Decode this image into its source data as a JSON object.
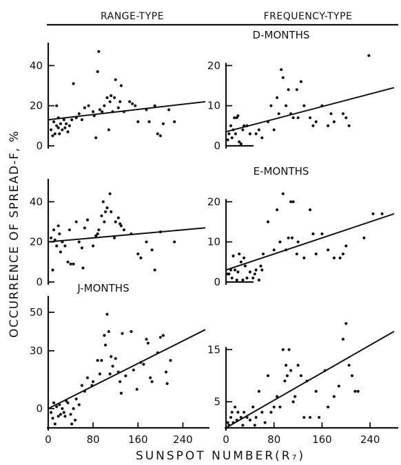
{
  "figure": {
    "col_titles": [
      "RANGE-TYPE",
      "FREQUENCY-TYPE"
    ],
    "ylabel": "OCCURRENCE OF SPREAD-F, %",
    "xlabel": "SUNSPOT NUMBER(R₇)"
  },
  "chart_data": [
    {
      "type": "scatter",
      "row": 0,
      "col": 0,
      "title": "",
      "xlim": [
        0,
        280
      ],
      "ylim": [
        0,
        48
      ],
      "xticks": [],
      "yticks": [
        0,
        20,
        40
      ],
      "fit": {
        "x0": 0,
        "y0": 13,
        "x1": 280,
        "y1": 22
      },
      "points": [
        [
          5,
          8
        ],
        [
          8,
          5
        ],
        [
          10,
          12
        ],
        [
          12,
          6
        ],
        [
          15,
          10
        ],
        [
          15,
          20
        ],
        [
          18,
          9
        ],
        [
          18,
          14
        ],
        [
          20,
          6
        ],
        [
          22,
          11
        ],
        [
          25,
          8
        ],
        [
          28,
          13
        ],
        [
          30,
          9
        ],
        [
          32,
          11
        ],
        [
          35,
          7
        ],
        [
          38,
          10
        ],
        [
          42,
          13
        ],
        [
          45,
          31
        ],
        [
          50,
          14
        ],
        [
          55,
          16
        ],
        [
          60,
          13
        ],
        [
          65,
          19
        ],
        [
          72,
          20
        ],
        [
          80,
          17
        ],
        [
          82,
          15
        ],
        [
          85,
          4
        ],
        [
          88,
          37
        ],
        [
          90,
          47
        ],
        [
          92,
          18
        ],
        [
          96,
          17
        ],
        [
          100,
          20
        ],
        [
          105,
          24
        ],
        [
          108,
          8
        ],
        [
          110,
          22
        ],
        [
          112,
          25
        ],
        [
          115,
          17
        ],
        [
          118,
          24
        ],
        [
          120,
          33
        ],
        [
          125,
          19
        ],
        [
          128,
          22
        ],
        [
          130,
          30
        ],
        [
          135,
          17
        ],
        [
          145,
          22
        ],
        [
          150,
          21
        ],
        [
          155,
          20
        ],
        [
          160,
          12
        ],
        [
          175,
          18
        ],
        [
          180,
          12
        ],
        [
          190,
          20
        ],
        [
          195,
          6
        ],
        [
          200,
          5
        ],
        [
          205,
          11
        ],
        [
          215,
          18
        ],
        [
          225,
          12
        ]
      ]
    },
    {
      "type": "scatter",
      "row": 0,
      "col": 1,
      "title": "D-MONTHS",
      "xlim": [
        0,
        280
      ],
      "ylim": [
        0,
        24
      ],
      "xticks": [],
      "yticks": [
        0,
        10,
        20
      ],
      "fit": {
        "x0": 0,
        "y0": 3.5,
        "x1": 280,
        "y1": 14.5
      },
      "points": [
        [
          3,
          1.5
        ],
        [
          5,
          3
        ],
        [
          8,
          5
        ],
        [
          10,
          2
        ],
        [
          12,
          4
        ],
        [
          14,
          7
        ],
        [
          16,
          3
        ],
        [
          18,
          7
        ],
        [
          20,
          7.5
        ],
        [
          22,
          1
        ],
        [
          25,
          0.5
        ],
        [
          28,
          4
        ],
        [
          30,
          5
        ],
        [
          35,
          5
        ],
        [
          40,
          3
        ],
        [
          50,
          3
        ],
        [
          55,
          4
        ],
        [
          60,
          2
        ],
        [
          70,
          6
        ],
        [
          75,
          10
        ],
        [
          80,
          4
        ],
        [
          85,
          12
        ],
        [
          88,
          8
        ],
        [
          92,
          19
        ],
        [
          95,
          17
        ],
        [
          100,
          10
        ],
        [
          104,
          14
        ],
        [
          108,
          8
        ],
        [
          112,
          7
        ],
        [
          118,
          14
        ],
        [
          120,
          7
        ],
        [
          125,
          16
        ],
        [
          130,
          10
        ],
        [
          140,
          7
        ],
        [
          145,
          5
        ],
        [
          150,
          6
        ],
        [
          160,
          10
        ],
        [
          170,
          5
        ],
        [
          175,
          8
        ],
        [
          180,
          6
        ],
        [
          195,
          8
        ],
        [
          200,
          7
        ],
        [
          205,
          5
        ],
        [
          238,
          22.5
        ]
      ]
    },
    {
      "type": "scatter",
      "row": 1,
      "col": 0,
      "title": "",
      "xlim": [
        0,
        280
      ],
      "ylim": [
        0,
        48
      ],
      "xticks": [],
      "yticks": [
        0,
        20,
        40
      ],
      "fit": {
        "x0": 0,
        "y0": 20,
        "x1": 280,
        "y1": 27
      },
      "points": [
        [
          5,
          22
        ],
        [
          8,
          6
        ],
        [
          10,
          26
        ],
        [
          12,
          21
        ],
        [
          15,
          18
        ],
        [
          18,
          28
        ],
        [
          20,
          24
        ],
        [
          22,
          15
        ],
        [
          25,
          20
        ],
        [
          30,
          18
        ],
        [
          35,
          10
        ],
        [
          38,
          26
        ],
        [
          40,
          9
        ],
        [
          45,
          9
        ],
        [
          50,
          30
        ],
        [
          55,
          20
        ],
        [
          60,
          17
        ],
        [
          62,
          7
        ],
        [
          65,
          27
        ],
        [
          70,
          31
        ],
        [
          80,
          18
        ],
        [
          85,
          23
        ],
        [
          88,
          24
        ],
        [
          90,
          26
        ],
        [
          95,
          33
        ],
        [
          98,
          40
        ],
        [
          100,
          30
        ],
        [
          102,
          35
        ],
        [
          105,
          37
        ],
        [
          110,
          44
        ],
        [
          112,
          35
        ],
        [
          118,
          22
        ],
        [
          120,
          30
        ],
        [
          125,
          32
        ],
        [
          128,
          29
        ],
        [
          130,
          28
        ],
        [
          135,
          26
        ],
        [
          148,
          24
        ],
        [
          160,
          14
        ],
        [
          165,
          12
        ],
        [
          175,
          20
        ],
        [
          185,
          16
        ],
        [
          190,
          6
        ],
        [
          200,
          25
        ],
        [
          225,
          20
        ]
      ]
    },
    {
      "type": "scatter",
      "row": 1,
      "col": 1,
      "title": "E-MONTHS",
      "xlim": [
        0,
        280
      ],
      "ylim": [
        0,
        24
      ],
      "xticks": [],
      "yticks": [
        0,
        10,
        20
      ],
      "fit": {
        "x0": 0,
        "y0": 3,
        "x1": 280,
        "y1": 17
      },
      "points": [
        [
          3,
          2
        ],
        [
          5,
          2
        ],
        [
          8,
          3
        ],
        [
          10,
          1
        ],
        [
          12,
          6.5
        ],
        [
          15,
          3
        ],
        [
          18,
          0.5
        ],
        [
          20,
          2.5
        ],
        [
          22,
          7
        ],
        [
          25,
          5
        ],
        [
          28,
          0.5
        ],
        [
          30,
          6
        ],
        [
          32,
          4
        ],
        [
          35,
          1
        ],
        [
          40,
          2.5
        ],
        [
          45,
          1
        ],
        [
          48,
          2
        ],
        [
          50,
          3
        ],
        [
          55,
          0.5
        ],
        [
          58,
          4
        ],
        [
          60,
          3
        ],
        [
          62,
          7
        ],
        [
          70,
          15
        ],
        [
          80,
          8
        ],
        [
          85,
          18
        ],
        [
          90,
          10
        ],
        [
          95,
          22
        ],
        [
          100,
          8
        ],
        [
          104,
          11
        ],
        [
          108,
          20
        ],
        [
          110,
          11
        ],
        [
          112,
          20
        ],
        [
          118,
          7
        ],
        [
          120,
          10
        ],
        [
          130,
          6
        ],
        [
          140,
          18
        ],
        [
          145,
          12
        ],
        [
          150,
          7
        ],
        [
          160,
          12
        ],
        [
          170,
          8
        ],
        [
          180,
          6
        ],
        [
          190,
          6
        ],
        [
          195,
          7
        ],
        [
          200,
          9
        ],
        [
          230,
          11
        ],
        [
          245,
          17
        ],
        [
          260,
          17
        ]
      ]
    },
    {
      "type": "scatter",
      "row": 2,
      "col": 0,
      "title": "J-MONTHS",
      "xlim": [
        0,
        280
      ],
      "ylim": [
        -10,
        55
      ],
      "xticks": [
        0,
        80,
        160,
        240
      ],
      "yticks": [
        0,
        30,
        50
      ],
      "fit": {
        "x0": 0,
        "y0": 0,
        "x1": 280,
        "y1": 41
      },
      "points": [
        [
          5,
          -2
        ],
        [
          8,
          -5
        ],
        [
          10,
          3
        ],
        [
          12,
          -8
        ],
        [
          15,
          1
        ],
        [
          18,
          -4
        ],
        [
          20,
          2
        ],
        [
          22,
          -3
        ],
        [
          25,
          0
        ],
        [
          28,
          -2
        ],
        [
          30,
          -4
        ],
        [
          32,
          4
        ],
        [
          35,
          3
        ],
        [
          40,
          -3
        ],
        [
          42,
          -8
        ],
        [
          45,
          0
        ],
        [
          48,
          -6
        ],
        [
          50,
          5
        ],
        [
          55,
          2
        ],
        [
          60,
          12
        ],
        [
          65,
          9
        ],
        [
          70,
          16
        ],
        [
          78,
          12
        ],
        [
          80,
          14
        ],
        [
          88,
          25
        ],
        [
          92,
          18
        ],
        [
          95,
          25
        ],
        [
          100,
          38
        ],
        [
          102,
          33
        ],
        [
          105,
          49
        ],
        [
          108,
          40
        ],
        [
          110,
          18
        ],
        [
          112,
          27
        ],
        [
          115,
          22
        ],
        [
          120,
          26
        ],
        [
          125,
          19
        ],
        [
          128,
          14
        ],
        [
          130,
          8
        ],
        [
          132,
          39
        ],
        [
          138,
          17
        ],
        [
          148,
          40
        ],
        [
          152,
          20
        ],
        [
          158,
          10
        ],
        [
          165,
          24
        ],
        [
          170,
          23
        ],
        [
          175,
          36
        ],
        [
          178,
          34
        ],
        [
          182,
          16
        ],
        [
          185,
          14
        ],
        [
          195,
          29
        ],
        [
          200,
          37
        ],
        [
          205,
          38
        ],
        [
          210,
          19
        ],
        [
          212,
          13
        ],
        [
          218,
          25
        ]
      ]
    },
    {
      "type": "scatter",
      "row": 2,
      "col": 1,
      "title": "",
      "xlim": [
        0,
        280
      ],
      "ylim": [
        0,
        24
      ],
      "xticks": [
        0,
        80,
        160,
        240
      ],
      "yticks": [
        5,
        15
      ],
      "fit": {
        "x0": 0,
        "y0": 0,
        "x1": 280,
        "y1": 18.5
      },
      "points": [
        [
          3,
          1
        ],
        [
          5,
          0.5
        ],
        [
          8,
          2
        ],
        [
          10,
          3
        ],
        [
          12,
          1
        ],
        [
          15,
          4
        ],
        [
          18,
          1.5
        ],
        [
          20,
          3
        ],
        [
          25,
          2
        ],
        [
          28,
          0.5
        ],
        [
          30,
          3
        ],
        [
          35,
          2
        ],
        [
          40,
          1.5
        ],
        [
          45,
          4
        ],
        [
          48,
          0.5
        ],
        [
          50,
          2
        ],
        [
          55,
          7
        ],
        [
          60,
          3
        ],
        [
          65,
          1
        ],
        [
          70,
          10
        ],
        [
          75,
          3
        ],
        [
          80,
          4
        ],
        [
          85,
          6
        ],
        [
          90,
          4
        ],
        [
          95,
          15
        ],
        [
          98,
          9
        ],
        [
          100,
          12
        ],
        [
          102,
          10
        ],
        [
          105,
          15
        ],
        [
          108,
          11
        ],
        [
          112,
          5
        ],
        [
          115,
          6
        ],
        [
          120,
          12
        ],
        [
          125,
          10
        ],
        [
          130,
          2
        ],
        [
          135,
          9
        ],
        [
          140,
          2
        ],
        [
          150,
          7
        ],
        [
          155,
          2
        ],
        [
          165,
          11
        ],
        [
          170,
          4
        ],
        [
          180,
          6
        ],
        [
          188,
          8
        ],
        [
          195,
          17
        ],
        [
          200,
          20
        ],
        [
          205,
          12
        ],
        [
          210,
          10
        ],
        [
          215,
          7
        ],
        [
          220,
          7
        ]
      ]
    }
  ]
}
